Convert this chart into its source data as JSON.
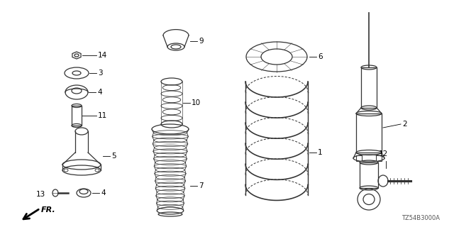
{
  "bg_color": "#ffffff",
  "part_number": "TZ54B3000A",
  "line_color": "#333333",
  "label_color": "#000000"
}
